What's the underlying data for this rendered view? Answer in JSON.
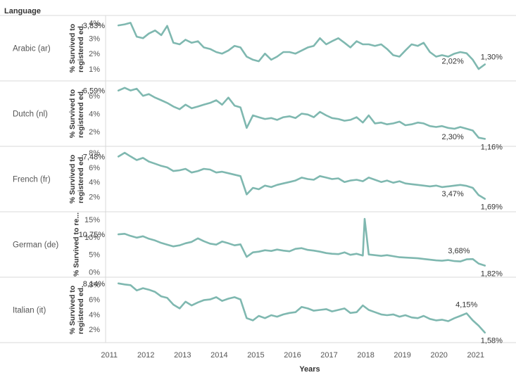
{
  "header": {
    "language_title": "Language"
  },
  "x_axis": {
    "title": "Years",
    "ticks": [
      "2011",
      "2012",
      "2013",
      "2014",
      "2015",
      "2016",
      "2017",
      "2018",
      "2019",
      "2020",
      "2021"
    ]
  },
  "line_color": "#7fb8b0",
  "chart_data": [
    {
      "type": "line",
      "language": "Arabic (ar)",
      "ylabel": "% Survived to registered ed.",
      "ylim": [
        0.5,
        4.2
      ],
      "yticks": [
        {
          "v": 1,
          "label": "1%"
        },
        {
          "v": 2,
          "label": "2%"
        },
        {
          "v": 3,
          "label": "3%"
        },
        {
          "v": 4,
          "label": "4%"
        }
      ],
      "x": [
        2011.25,
        2011.42,
        2011.58,
        2011.75,
        2011.92,
        2012.08,
        2012.25,
        2012.42,
        2012.58,
        2012.75,
        2012.92,
        2013.08,
        2013.25,
        2013.42,
        2013.58,
        2013.75,
        2013.92,
        2014.08,
        2014.25,
        2014.42,
        2014.58,
        2014.75,
        2014.92,
        2015.08,
        2015.25,
        2015.42,
        2015.58,
        2015.75,
        2015.92,
        2016.08,
        2016.25,
        2016.42,
        2016.58,
        2016.75,
        2016.92,
        2017.08,
        2017.25,
        2017.42,
        2017.58,
        2017.75,
        2017.92,
        2018.08,
        2018.25,
        2018.42,
        2018.58,
        2018.75,
        2018.92,
        2019.08,
        2019.25,
        2019.42,
        2019.58,
        2019.75,
        2019.92,
        2020.08,
        2020.25,
        2020.42,
        2020.58,
        2020.75,
        2020.92,
        2021.08,
        2021.25
      ],
      "values": [
        3.83,
        3.9,
        4.0,
        3.1,
        3.0,
        3.3,
        3.5,
        3.2,
        3.8,
        2.7,
        2.6,
        2.9,
        2.7,
        2.8,
        2.4,
        2.3,
        2.1,
        2.0,
        2.2,
        2.5,
        2.4,
        1.8,
        1.6,
        1.5,
        2.0,
        1.6,
        1.8,
        2.1,
        2.1,
        2.0,
        2.2,
        2.4,
        2.5,
        3.0,
        2.6,
        2.8,
        3.0,
        2.7,
        2.4,
        2.8,
        2.6,
        2.6,
        2.5,
        2.6,
        2.3,
        1.9,
        1.8,
        2.2,
        2.6,
        2.5,
        2.7,
        2.1,
        1.8,
        1.9,
        1.8,
        2.0,
        2.1,
        2.02,
        1.6,
        1.0,
        1.3
      ],
      "labels": [
        {
          "idx": 0,
          "text": "3,83%",
          "pos": "left"
        },
        {
          "idx": 57,
          "text": "2,02%",
          "pos": "below-left"
        },
        {
          "idx": 60,
          "text": "1,30%",
          "pos": "above-right"
        }
      ]
    },
    {
      "type": "line",
      "language": "Dutch (nl)",
      "ylabel": "% Survived to registered ed.",
      "ylim": [
        0.8,
        7.2
      ],
      "yticks": [
        {
          "v": 2,
          "label": "2%"
        },
        {
          "v": 4,
          "label": "4%"
        },
        {
          "v": 6,
          "label": "6%"
        }
      ],
      "x": [
        2011.25,
        2011.42,
        2011.58,
        2011.75,
        2011.92,
        2012.08,
        2012.25,
        2012.42,
        2012.58,
        2012.75,
        2012.92,
        2013.08,
        2013.25,
        2013.42,
        2013.58,
        2013.75,
        2013.92,
        2014.08,
        2014.25,
        2014.42,
        2014.58,
        2014.75,
        2014.92,
        2015.08,
        2015.25,
        2015.42,
        2015.58,
        2015.75,
        2015.92,
        2016.08,
        2016.25,
        2016.42,
        2016.58,
        2016.75,
        2016.92,
        2017.08,
        2017.25,
        2017.42,
        2017.58,
        2017.75,
        2017.92,
        2018.08,
        2018.25,
        2018.42,
        2018.58,
        2018.75,
        2018.92,
        2019.08,
        2019.25,
        2019.42,
        2019.58,
        2019.75,
        2019.92,
        2020.08,
        2020.25,
        2020.42,
        2020.58,
        2020.75,
        2020.92,
        2021.08,
        2021.25
      ],
      "values": [
        6.59,
        6.9,
        6.6,
        6.8,
        6.0,
        6.2,
        5.8,
        5.5,
        5.2,
        4.8,
        4.5,
        5.0,
        4.6,
        4.8,
        5.0,
        5.2,
        5.5,
        5.0,
        5.8,
        4.9,
        4.7,
        2.4,
        3.8,
        3.6,
        3.4,
        3.5,
        3.3,
        3.6,
        3.7,
        3.5,
        4.0,
        3.9,
        3.6,
        4.2,
        3.8,
        3.5,
        3.4,
        3.2,
        3.3,
        3.6,
        3.0,
        3.8,
        2.9,
        3.0,
        2.8,
        2.9,
        3.1,
        2.7,
        2.8,
        3.0,
        2.9,
        2.6,
        2.5,
        2.6,
        2.4,
        2.3,
        2.5,
        2.3,
        2.1,
        1.3,
        1.16
      ],
      "labels": [
        {
          "idx": 0,
          "text": "6,59%",
          "pos": "left"
        },
        {
          "idx": 57,
          "text": "2,30%",
          "pos": "below-left"
        },
        {
          "idx": 60,
          "text": "1,16%",
          "pos": "below-right"
        }
      ]
    },
    {
      "type": "line",
      "language": "French (fr)",
      "ylabel": "% Survived to registered ed.",
      "ylim": [
        0.5,
        8.3
      ],
      "yticks": [
        {
          "v": 2,
          "label": "2%"
        },
        {
          "v": 4,
          "label": "4%"
        },
        {
          "v": 6,
          "label": "6%"
        },
        {
          "v": 8,
          "label": "8%"
        }
      ],
      "x": [
        2011.25,
        2011.42,
        2011.58,
        2011.75,
        2011.92,
        2012.08,
        2012.25,
        2012.42,
        2012.58,
        2012.75,
        2012.92,
        2013.08,
        2013.25,
        2013.42,
        2013.58,
        2013.75,
        2013.92,
        2014.08,
        2014.25,
        2014.42,
        2014.58,
        2014.75,
        2014.92,
        2015.08,
        2015.25,
        2015.42,
        2015.58,
        2015.75,
        2015.92,
        2016.08,
        2016.25,
        2016.42,
        2016.58,
        2016.75,
        2016.92,
        2017.08,
        2017.25,
        2017.42,
        2017.58,
        2017.75,
        2017.92,
        2018.08,
        2018.25,
        2018.42,
        2018.58,
        2018.75,
        2018.92,
        2019.08,
        2019.25,
        2019.42,
        2019.58,
        2019.75,
        2019.92,
        2020.08,
        2020.25,
        2020.42,
        2020.58,
        2020.75,
        2020.92,
        2021.08,
        2021.25
      ],
      "values": [
        7.48,
        8.0,
        7.5,
        7.0,
        7.3,
        6.8,
        6.5,
        6.2,
        6.0,
        5.5,
        5.6,
        5.8,
        5.3,
        5.5,
        5.8,
        5.7,
        5.3,
        5.4,
        5.2,
        5.0,
        4.8,
        2.3,
        3.2,
        3.0,
        3.5,
        3.3,
        3.6,
        3.8,
        4.0,
        4.2,
        4.6,
        4.4,
        4.3,
        4.8,
        4.6,
        4.4,
        4.5,
        4.0,
        4.2,
        4.3,
        4.1,
        4.6,
        4.3,
        4.0,
        4.2,
        3.9,
        4.1,
        3.8,
        3.7,
        3.6,
        3.5,
        3.4,
        3.5,
        3.3,
        3.4,
        3.5,
        3.6,
        3.47,
        3.2,
        2.2,
        1.69
      ],
      "labels": [
        {
          "idx": 0,
          "text": "7,48%",
          "pos": "left"
        },
        {
          "idx": 57,
          "text": "3,47%",
          "pos": "below-left"
        },
        {
          "idx": 60,
          "text": "1,69%",
          "pos": "below-right"
        }
      ]
    },
    {
      "type": "line",
      "language": "German (de)",
      "ylabel": "% Survived to re...",
      "ylim": [
        -0.3,
        16.0
      ],
      "yticks": [
        {
          "v": 0,
          "label": "0%"
        },
        {
          "v": 5,
          "label": "5%"
        },
        {
          "v": 10,
          "label": "10%"
        },
        {
          "v": 15,
          "label": "15%"
        }
      ],
      "x": [
        2011.25,
        2011.42,
        2011.58,
        2011.75,
        2011.92,
        2012.08,
        2012.25,
        2012.42,
        2012.58,
        2012.75,
        2012.92,
        2013.08,
        2013.25,
        2013.42,
        2013.58,
        2013.75,
        2013.92,
        2014.08,
        2014.25,
        2014.42,
        2014.58,
        2014.75,
        2014.92,
        2015.08,
        2015.25,
        2015.42,
        2015.58,
        2015.75,
        2015.92,
        2016.08,
        2016.25,
        2016.42,
        2016.58,
        2016.75,
        2016.92,
        2017.08,
        2017.25,
        2017.42,
        2017.58,
        2017.75,
        2017.92,
        2017.97,
        2018.08,
        2018.25,
        2018.42,
        2018.58,
        2018.75,
        2018.92,
        2019.08,
        2019.25,
        2019.42,
        2019.58,
        2019.75,
        2019.92,
        2020.08,
        2020.25,
        2020.42,
        2020.58,
        2020.75,
        2020.92,
        2021.08,
        2021.25
      ],
      "values": [
        10.75,
        10.9,
        10.3,
        9.8,
        10.2,
        9.5,
        9.0,
        8.3,
        7.8,
        7.3,
        7.6,
        8.2,
        8.6,
        9.6,
        8.8,
        8.1,
        7.8,
        8.7,
        8.2,
        7.6,
        7.9,
        4.3,
        5.6,
        5.8,
        6.2,
        6.0,
        6.4,
        6.1,
        5.9,
        6.6,
        6.8,
        6.3,
        6.1,
        5.8,
        5.4,
        5.2,
        5.1,
        5.6,
        4.9,
        5.2,
        4.7,
        15.2,
        5.0,
        4.8,
        4.6,
        4.8,
        4.5,
        4.2,
        4.1,
        4.0,
        3.9,
        3.7,
        3.5,
        3.3,
        3.2,
        3.4,
        3.1,
        3.0,
        3.6,
        3.68,
        2.4,
        1.82
      ],
      "labels": [
        {
          "idx": 0,
          "text": "10,75%",
          "pos": "left"
        },
        {
          "idx": 59,
          "text": "3,68%",
          "pos": "above-left"
        },
        {
          "idx": 61,
          "text": "1,82%",
          "pos": "below-right"
        }
      ]
    },
    {
      "type": "line",
      "language": "Italian (it)",
      "ylabel": "% Survived to registered ed.",
      "ylim": [
        0.8,
        8.4
      ],
      "yticks": [
        {
          "v": 2,
          "label": "2%"
        },
        {
          "v": 4,
          "label": "4%"
        },
        {
          "v": 6,
          "label": "6%"
        },
        {
          "v": 8,
          "label": "8%"
        }
      ],
      "x": [
        2011.25,
        2011.42,
        2011.58,
        2011.75,
        2011.92,
        2012.08,
        2012.25,
        2012.42,
        2012.58,
        2012.75,
        2012.92,
        2013.08,
        2013.25,
        2013.42,
        2013.58,
        2013.75,
        2013.92,
        2014.08,
        2014.25,
        2014.42,
        2014.58,
        2014.75,
        2014.92,
        2015.08,
        2015.25,
        2015.42,
        2015.58,
        2015.75,
        2015.92,
        2016.08,
        2016.25,
        2016.42,
        2016.58,
        2016.75,
        2016.92,
        2017.08,
        2017.25,
        2017.42,
        2017.58,
        2017.75,
        2017.92,
        2018.08,
        2018.25,
        2018.42,
        2018.58,
        2018.75,
        2018.92,
        2019.08,
        2019.25,
        2019.42,
        2019.58,
        2019.75,
        2019.92,
        2020.08,
        2020.25,
        2020.42,
        2020.58,
        2020.75,
        2020.92,
        2021.08,
        2021.25
      ],
      "values": [
        8.14,
        8.0,
        7.9,
        7.2,
        7.5,
        7.3,
        7.0,
        6.4,
        6.2,
        5.3,
        4.8,
        5.7,
        5.2,
        5.6,
        5.9,
        6.0,
        6.3,
        5.8,
        6.1,
        6.3,
        6.0,
        3.5,
        3.2,
        3.8,
        3.5,
        3.9,
        3.7,
        4.0,
        4.2,
        4.3,
        5.0,
        4.8,
        4.5,
        4.6,
        4.7,
        4.4,
        4.6,
        4.8,
        4.2,
        4.3,
        5.2,
        4.6,
        4.3,
        4.0,
        3.9,
        4.0,
        3.7,
        3.9,
        3.6,
        3.5,
        3.8,
        3.4,
        3.2,
        3.3,
        3.1,
        3.5,
        3.8,
        4.15,
        3.2,
        2.5,
        1.58
      ],
      "labels": [
        {
          "idx": 0,
          "text": "8,14%",
          "pos": "left"
        },
        {
          "idx": 57,
          "text": "4,15%",
          "pos": "above"
        },
        {
          "idx": 60,
          "text": "1,58%",
          "pos": "below-right"
        }
      ]
    }
  ]
}
